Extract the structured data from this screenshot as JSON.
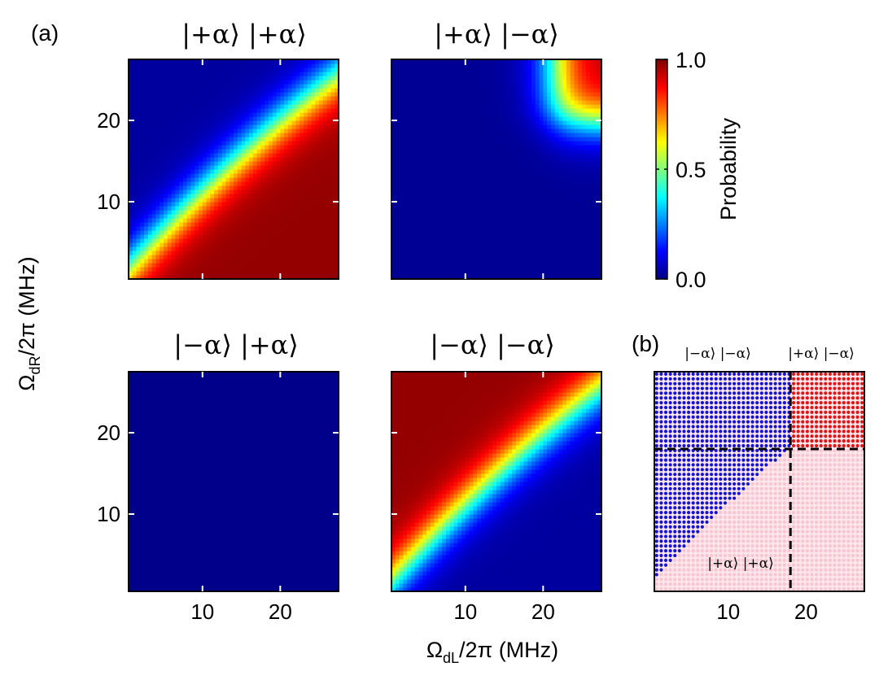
{
  "chart_data": {
    "type": "heatmap",
    "panel_labels": {
      "a": "(a)",
      "b": "(b)"
    },
    "axes": {
      "xlabel_main": "Ω",
      "xlabel_sub": "dL",
      "xlabel_rest": "/2π (MHz)",
      "ylabel_main": "Ω",
      "ylabel_sub": "dR",
      "ylabel_rest": "/2π (MHz)",
      "xlim": [
        0.5,
        27.5
      ],
      "ylim": [
        0.5,
        27.5
      ],
      "xticks": [
        10,
        20
      ],
      "yticks": [
        10,
        20
      ]
    },
    "heatmaps": [
      {
        "title": "|+α⟩ |+α⟩",
        "id": "pp",
        "peak_region": "bottom-right"
      },
      {
        "title": "|+α⟩ |−α⟩",
        "id": "pm",
        "peak_region": "top-right"
      },
      {
        "title": "|−α⟩ |+α⟩",
        "id": "mp",
        "peak_region": "none"
      },
      {
        "title": "|−α⟩ |−α⟩",
        "id": "mm",
        "peak_region": "top-left"
      }
    ],
    "colorbar": {
      "label": "Probability",
      "range": [
        0.0,
        1.0
      ],
      "ticks": [
        "0.0",
        "0.5",
        "1.0"
      ],
      "colormap": "jet"
    },
    "phase_diagram": {
      "state_labels": {
        "minus_minus": "|−α⟩ |−α⟩",
        "plus_minus": "|+α⟩ |−α⟩",
        "plus_plus": "|+α⟩ |+α⟩"
      },
      "threshold_x": 18,
      "threshold_y": 18,
      "colors": {
        "minus_minus": "#1414d2",
        "plus_minus": "#e01414",
        "plus_plus": "#f7c6d0"
      }
    }
  }
}
